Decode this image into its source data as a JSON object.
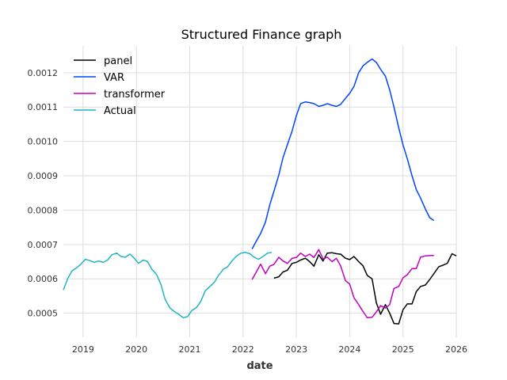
{
  "chart_data": {
    "type": "line",
    "title": "Structured Finance graph",
    "xlabel": "date",
    "ylabel": "",
    "xlim": [
      2018.63,
      2026.0
    ],
    "ylim": [
      0.00043,
      0.001278
    ],
    "grid": true,
    "legend_position": "top-left",
    "x_ticks": [
      {
        "value": 2019,
        "label": "2019"
      },
      {
        "value": 2020,
        "label": "2020"
      },
      {
        "value": 2021,
        "label": "2021"
      },
      {
        "value": 2022,
        "label": "2022"
      },
      {
        "value": 2023,
        "label": "2023"
      },
      {
        "value": 2024,
        "label": "2024"
      },
      {
        "value": 2025,
        "label": "2025"
      },
      {
        "value": 2026,
        "label": "2026"
      }
    ],
    "y_ticks": [
      {
        "value": 0.0005,
        "label": "0.0005"
      },
      {
        "value": 0.0006,
        "label": "0.0006"
      },
      {
        "value": 0.0007,
        "label": "0.0007"
      },
      {
        "value": 0.0008,
        "label": "0.0008"
      },
      {
        "value": 0.0009,
        "label": "0.0009"
      },
      {
        "value": 0.001,
        "label": "0.0010"
      },
      {
        "value": 0.0011,
        "label": "0.0011"
      },
      {
        "value": 0.0012,
        "label": "0.0012"
      }
    ],
    "series": [
      {
        "name": "panel",
        "color": "#000000",
        "x": [
          2022.58,
          2022.67,
          2022.75,
          2022.83,
          2022.92,
          2023.0,
          2023.08,
          2023.17,
          2023.25,
          2023.33,
          2023.42,
          2023.5,
          2023.58,
          2023.67,
          2023.75,
          2023.83,
          2023.92,
          2024.0,
          2024.08,
          2024.17,
          2024.25,
          2024.33,
          2024.42,
          2024.5,
          2024.58,
          2024.67,
          2024.75,
          2024.83,
          2024.92,
          2025.0,
          2025.08,
          2025.17,
          2025.25,
          2025.33,
          2025.42,
          2025.5,
          2025.58,
          2025.67,
          2025.75,
          2025.83,
          2025.92,
          2026.0
        ],
        "y": [
          0.000602,
          0.000606,
          0.00062,
          0.000625,
          0.000645,
          0.000648,
          0.000655,
          0.00066,
          0.00065,
          0.000637,
          0.00067,
          0.000652,
          0.000675,
          0.000676,
          0.000673,
          0.000672,
          0.00066,
          0.000656,
          0.000665,
          0.00065,
          0.000638,
          0.00061,
          0.0006,
          0.00053,
          0.000497,
          0.000525,
          0.0005,
          0.00047,
          0.000469,
          0.00051,
          0.000527,
          0.000527,
          0.000563,
          0.000578,
          0.000582,
          0.000598,
          0.000615,
          0.000635,
          0.00064,
          0.000645,
          0.000673,
          0.000667
        ]
      },
      {
        "name": "VAR",
        "color": "#0044ff",
        "x": [
          2022.17,
          2022.25,
          2022.33,
          2022.42,
          2022.5,
          2022.58,
          2022.67,
          2022.75,
          2022.83,
          2022.92,
          2023.0,
          2023.08,
          2023.17,
          2023.25,
          2023.33,
          2023.42,
          2023.5,
          2023.58,
          2023.67,
          2023.75,
          2023.83,
          2023.92,
          2024.0,
          2024.08,
          2024.17,
          2024.25,
          2024.33,
          2024.42,
          2024.5,
          2024.58,
          2024.67,
          2024.75,
          2024.83,
          2024.92,
          2025.0,
          2025.08,
          2025.17,
          2025.25,
          2025.33,
          2025.42,
          2025.5,
          2025.58
        ],
        "y": [
          0.000687,
          0.00071,
          0.000732,
          0.000765,
          0.000815,
          0.000855,
          0.000902,
          0.000953,
          0.00099,
          0.00103,
          0.001075,
          0.00111,
          0.001115,
          0.001113,
          0.00111,
          0.001102,
          0.001105,
          0.00111,
          0.001105,
          0.001102,
          0.001108,
          0.001125,
          0.00114,
          0.00116,
          0.0012,
          0.00122,
          0.00123,
          0.00124,
          0.00123,
          0.00121,
          0.00119,
          0.00115,
          0.0011,
          0.00104,
          0.00099,
          0.00095,
          0.0009,
          0.00086,
          0.000835,
          0.000803,
          0.000778,
          0.00077
        ]
      },
      {
        "name": "transformer",
        "color": "#c000c0",
        "x": [
          2022.17,
          2022.25,
          2022.33,
          2022.42,
          2022.5,
          2022.58,
          2022.67,
          2022.75,
          2022.83,
          2022.92,
          2023.0,
          2023.08,
          2023.17,
          2023.25,
          2023.33,
          2023.42,
          2023.5,
          2023.58,
          2023.67,
          2023.75,
          2023.83,
          2023.92,
          2024.0,
          2024.08,
          2024.17,
          2024.25,
          2024.33,
          2024.42,
          2024.5,
          2024.58,
          2024.67,
          2024.75,
          2024.83,
          2024.92,
          2025.0,
          2025.08,
          2025.17,
          2025.25,
          2025.33,
          2025.42,
          2025.5,
          2025.58
        ],
        "y": [
          0.000598,
          0.00062,
          0.000643,
          0.000615,
          0.000637,
          0.000642,
          0.000663,
          0.000652,
          0.000645,
          0.00066,
          0.000662,
          0.000675,
          0.000665,
          0.000672,
          0.000662,
          0.000685,
          0.000658,
          0.000663,
          0.00065,
          0.00066,
          0.000638,
          0.000595,
          0.000585,
          0.000545,
          0.000525,
          0.000505,
          0.000487,
          0.000488,
          0.000504,
          0.000522,
          0.000515,
          0.000525,
          0.000572,
          0.000578,
          0.000603,
          0.000612,
          0.00063,
          0.00063,
          0.000663,
          0.000667,
          0.000668,
          0.000668
        ]
      },
      {
        "name": "Actual",
        "color": "#1fb5c5",
        "x": [
          2018.63,
          2018.71,
          2018.79,
          2018.88,
          2018.96,
          2019.04,
          2019.13,
          2019.21,
          2019.29,
          2019.38,
          2019.46,
          2019.54,
          2019.63,
          2019.71,
          2019.79,
          2019.88,
          2019.96,
          2020.04,
          2020.13,
          2020.21,
          2020.29,
          2020.38,
          2020.46,
          2020.54,
          2020.63,
          2020.71,
          2020.79,
          2020.88,
          2020.96,
          2021.04,
          2021.13,
          2021.21,
          2021.29,
          2021.38,
          2021.46,
          2021.54,
          2021.63,
          2021.71,
          2021.79,
          2021.88,
          2021.96,
          2022.04,
          2022.13,
          2022.21,
          2022.29,
          2022.38,
          2022.46,
          2022.54
        ],
        "y": [
          0.000568,
          0.0006,
          0.000623,
          0.000632,
          0.000643,
          0.000657,
          0.000653,
          0.000648,
          0.000652,
          0.000648,
          0.000655,
          0.00067,
          0.000675,
          0.000665,
          0.000663,
          0.000672,
          0.00066,
          0.000645,
          0.000655,
          0.00065,
          0.000628,
          0.000612,
          0.000583,
          0.00054,
          0.000515,
          0.000505,
          0.000497,
          0.000487,
          0.00049,
          0.000508,
          0.000517,
          0.000535,
          0.000565,
          0.000578,
          0.00059,
          0.00061,
          0.000628,
          0.000635,
          0.000652,
          0.000667,
          0.000675,
          0.000677,
          0.000673,
          0.000663,
          0.000657,
          0.000666,
          0.000675,
          0.000677
        ]
      }
    ]
  }
}
